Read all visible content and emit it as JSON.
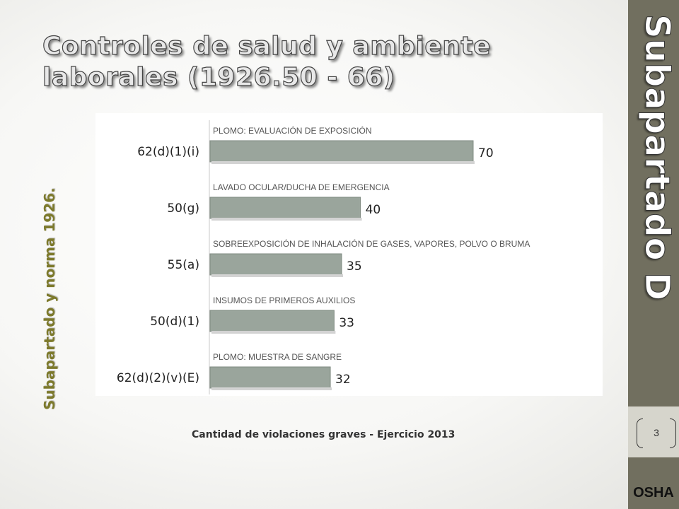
{
  "slide": {
    "title": "Controles de salud y ambiente laborales (1926.50 - 66)",
    "side_title": "Subapartado D",
    "vertical_label": "Subapartado y norma 1926.",
    "caption": "Cantidad de violaciones graves - Ejercicio 2013",
    "page_number": "3",
    "logo_text": "OSHA"
  },
  "colors": {
    "bar": "#9aa59c",
    "side_panel": "#716f5f",
    "vertical_label": "#7d7a2c"
  },
  "chart_data": {
    "type": "bar",
    "orientation": "horizontal",
    "categories": [
      "62(d)(1)(i)",
      "50(g)",
      "55(a)",
      "50(d)(1)",
      "62(d)(2)(v)(E)"
    ],
    "descriptions": [
      "PLOMO: EVALUACIÓN DE EXPOSICIÓN",
      "LAVADO OCULAR/DUCHA DE EMERGENCIA",
      "SOBREEXPOSICIÓN DE INHALACIÓN DE GASES, VAPORES, POLVO O BRUMA",
      "INSUMOS DE PRIMEROS AUXILIOS",
      "PLOMO: MUESTRA DE SANGRE"
    ],
    "values": [
      70,
      40,
      35,
      33,
      32
    ],
    "xlim": [
      0,
      70
    ],
    "grid": false
  }
}
